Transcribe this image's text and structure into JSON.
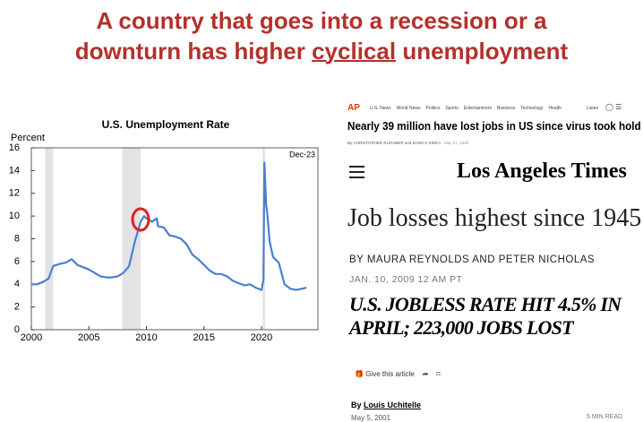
{
  "slide_title": [
    "A country that goes into a recession or a",
    "downturn has higher",
    "cyclical",
    "unemployment"
  ],
  "chart_data": {
    "type": "line",
    "title": "U.S. Unemployment  Rate",
    "y_label": "Percent",
    "annotation": "Dec-23",
    "color": "#4a7fd0",
    "x": [
      2000,
      2000.5,
      2001,
      2001.5,
      2001.9,
      2002.5,
      2003,
      2003.5,
      2004,
      2004.5,
      2005,
      2005.5,
      2006,
      2006.5,
      2007,
      2007.5,
      2008,
      2008.5,
      2009,
      2009.5,
      2009.8,
      2010,
      2010.5,
      2010.9,
      2011,
      2011.5,
      2012,
      2012.5,
      2013,
      2013.5,
      2014,
      2014.5,
      2015,
      2015.5,
      2016,
      2016.5,
      2017,
      2017.5,
      2018,
      2018.5,
      2019,
      2019.5,
      2020,
      2020.17,
      2020.25,
      2020.4,
      2020.5,
      2020.7,
      2021,
      2021.5,
      2022,
      2022.5,
      2023,
      2023.5,
      2023.9
    ],
    "values": [
      4.0,
      4.0,
      4.2,
      4.5,
      5.6,
      5.8,
      5.9,
      6.2,
      5.7,
      5.5,
      5.3,
      5.0,
      4.7,
      4.6,
      4.6,
      4.7,
      5.0,
      5.6,
      7.8,
      9.5,
      10.0,
      9.8,
      9.5,
      9.8,
      9.1,
      9.0,
      8.3,
      8.2,
      8.0,
      7.5,
      6.6,
      6.2,
      5.7,
      5.2,
      4.9,
      4.9,
      4.7,
      4.3,
      4.1,
      3.9,
      4.0,
      3.7,
      3.5,
      4.4,
      14.7,
      11.0,
      10.2,
      7.8,
      6.4,
      5.9,
      4.0,
      3.6,
      3.5,
      3.6,
      3.7
    ],
    "recessions": [
      [
        2001.2,
        2001.9
      ],
      [
        2007.9,
        2009.5
      ],
      [
        2020.1,
        2020.3
      ]
    ],
    "xlim": [
      2000,
      2024.9
    ],
    "xticks": [
      2000,
      2005,
      2010,
      2015,
      2020
    ],
    "ylim": [
      0,
      16
    ],
    "yticks": [
      0,
      2,
      4,
      6,
      8,
      10,
      12,
      14,
      16
    ]
  },
  "ap": {
    "logo": "AP",
    "nav": [
      "U.S. News",
      "World News",
      "Politics",
      "Sports",
      "Entertainment",
      "Business",
      "Technology",
      "Health"
    ],
    "listen": "Listen",
    "headline": "Nearly 39 million have lost jobs in US since virus took hold",
    "byline": "By CHRISTOPHER RUGABER and DANICA KIRKA",
    "date": "May 21, 2020"
  },
  "latimes": {
    "logo": "Los Angeles Times",
    "headline": "Job losses highest since 1945",
    "byline": "BY MAURA REYNOLDS AND PETER NICHOLAS",
    "date": "JAN. 10, 2009 12 AM PT"
  },
  "nyt": {
    "headline": "U.S. JOBLESS RATE HIT 4.5% IN APRIL; 223,000 JOBS LOST",
    "share": "Give this article",
    "by": "By",
    "author": "Louis Uchitelle",
    "date": "May 5, 2001",
    "read": "5 MIN READ"
  }
}
